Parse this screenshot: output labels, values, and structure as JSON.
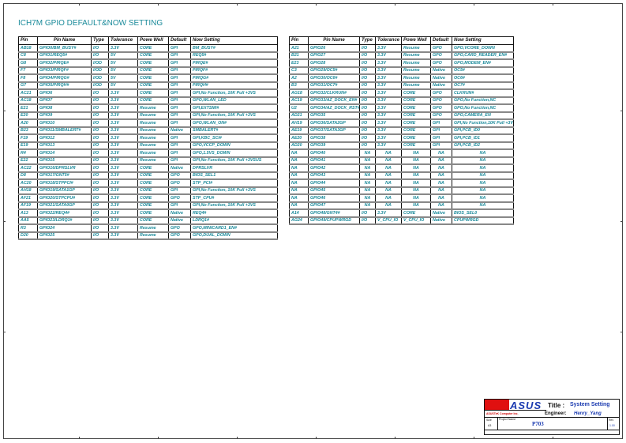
{
  "title": "ICH7M GPIO DEFAULT&NOW SETTING",
  "headers": [
    "Pin",
    "Pin Name",
    "Type",
    "Tolerance",
    "Powe Well",
    "Default",
    "Now Setting"
  ],
  "left_rows": [
    [
      "AB18",
      "GPIO0/BM_BUSY#",
      "I/O",
      "3.3V",
      "CORE",
      "GPI",
      "BM_BUSY#"
    ],
    [
      "C8",
      "GPIO1/REQ5#",
      "I/O",
      "5V",
      "CORE",
      "GPI",
      "REQ5#"
    ],
    [
      "G8",
      "GPIO2/PIRQE#",
      "I/OD",
      "5V",
      "CORE",
      "GPI",
      "PIRQE#"
    ],
    [
      "F7",
      "GPIO3/PIRQF#",
      "I/OD",
      "5V",
      "CORE",
      "GPI",
      "PIRQF#"
    ],
    [
      "F8",
      "GPIO4/PIRQG#",
      "I/OD",
      "5V",
      "CORE",
      "GPI",
      "PIRQG#"
    ],
    [
      "G7",
      "GPIO5/PIRQH#",
      "I/OD",
      "5V",
      "CORE",
      "GPI",
      "PIRQH#"
    ],
    [
      "AC21",
      "GPIO6",
      "I/O",
      "3.3V",
      "CORE",
      "GPI",
      "GPI,No Function, 10K Pull +3VS"
    ],
    [
      "AC18",
      "GPIO7",
      "I/O",
      "3.3V",
      "CORE",
      "GPI",
      "GPO,WLAN_LED"
    ],
    [
      "E21",
      "GPIO8",
      "I/O",
      "3.3V",
      "Resume",
      "GPI",
      "GPI,EXTSMI#"
    ],
    [
      "E20",
      "GPIO9",
      "I/O",
      "3.3V",
      "Resume",
      "GPI",
      "GPI,No Function, 10K Pull +3VS"
    ],
    [
      "A20",
      "GPIO10",
      "I/O",
      "3.3V",
      "Resume",
      "GPI",
      "GPO,WLAN_ON#"
    ],
    [
      "B23",
      "GPIO11/SMBALERT#",
      "I/O",
      "3.3V",
      "Resume",
      "Native",
      "SMBALERT#"
    ],
    [
      "F19",
      "GPIO12",
      "I/O",
      "3.3V",
      "Resume",
      "GPI",
      "GPI,KBC_SCI#"
    ],
    [
      "E19",
      "GPIO13",
      "I/O",
      "3.3V",
      "Resume",
      "GPI",
      "GPO,VCCP_DOWN"
    ],
    [
      "R4",
      "GPIO14",
      "I/O",
      "3.3V",
      "Resume",
      "GPI",
      "GPO,1.5VS_DOWN"
    ],
    [
      "E22",
      "GPIO15",
      "I/O",
      "3.3V",
      "Resume",
      "GPI",
      "GPI,No Function, 10K Pull +3VSUS"
    ],
    [
      "AC22",
      "GPIO16/DPRSLVR",
      "I/O",
      "3.3V",
      "CORE",
      "Native",
      "DPRSLVR"
    ],
    [
      "D8",
      "GPIO17/GNT5#",
      "I/O",
      "3.3V",
      "CORE",
      "GPO",
      "BIOS_SEL1"
    ],
    [
      "AC20",
      "GPIO18/STPPCI#",
      "I/O",
      "3.3V",
      "CORE",
      "GPO",
      "STP_PCI#"
    ],
    [
      "AH18",
      "GPIO19/SATA1GP",
      "I/O",
      "3.3V",
      "CORE",
      "GPI",
      "GPI,No Function, 10K Pull +3VS"
    ],
    [
      "AF21",
      "GPIO20/STPCPU#",
      "I/O",
      "3.3V",
      "CORE",
      "GPO",
      "STP_CPU#"
    ],
    [
      "AF19",
      "GPIO21/SATA0GP",
      "I/O",
      "3.3V",
      "CORE",
      "GPI",
      "GPI,No Function, 10K Pull +3VS"
    ],
    [
      "A13",
      "GPIO22/REQ4#",
      "I/O",
      "3.3V",
      "CORE",
      "Native",
      "REQ4#"
    ],
    [
      "AA5",
      "GPIO23/LDRQ1#",
      "I/O",
      "3.3V",
      "CORE",
      "Native",
      "LDRQ1#"
    ],
    [
      "R3",
      "GPIO24",
      "I/O",
      "3.3V",
      "Resume",
      "GPO",
      "GPO,MINICARD1_EN#"
    ],
    [
      "D20",
      "GPIO25",
      "I/O",
      "3.3V",
      "Resume",
      "GPO",
      "GPO,DUAL_DOWN"
    ]
  ],
  "right_rows": [
    [
      "A21",
      "GPIO26",
      "I/O",
      "3.3V",
      "Resume",
      "GPO",
      "GPO,VCORE_DOWN"
    ],
    [
      "B21",
      "GPIO27",
      "I/O",
      "3.3V",
      "Resume",
      "GPO",
      "GPO,CARD_READER_EN#"
    ],
    [
      "E23",
      "GPIO28",
      "I/O",
      "3.3V",
      "Resume",
      "GPO",
      "GPO,MODEM_EN#"
    ],
    [
      "C3",
      "GPIO29/OC5#",
      "I/O",
      "3.3V",
      "Resume",
      "Native",
      "OC5#"
    ],
    [
      "A2",
      "GPIO30/OC6#",
      "I/O",
      "3.3V",
      "Resume",
      "Native",
      "OC6#"
    ],
    [
      "B3",
      "GPIO31/OC7#",
      "I/O",
      "3.3V",
      "Resume",
      "Native",
      "OC7#"
    ],
    [
      "AG18",
      "GPIO32/CLKRUN#",
      "I/O",
      "3.3V",
      "CORE",
      "GPO",
      "CLKRUN#"
    ],
    [
      "AC19",
      "GPIO33/AZ_DOCK_EN#",
      "I/O",
      "3.3V",
      "CORE",
      "GPO",
      "GPO,No Function,NC"
    ],
    [
      "U2",
      "GPIO34/AZ_DOCK_RST#",
      "I/O",
      "3.3V",
      "CORE",
      "GPO",
      "GPO,No Function,NC"
    ],
    [
      "AD21",
      "GPIO35",
      "I/O",
      "3.3V",
      "CORE",
      "GPO",
      "GPO,CAMERA_EN"
    ],
    [
      "AH19",
      "GPIO36/SATA2GP",
      "I/O",
      "3.3V",
      "CORE",
      "GPI",
      "GPI,No Function,10K Pull +3VS"
    ],
    [
      "AE19",
      "GPIO37/SATA3GP",
      "I/O",
      "3.3V",
      "CORE",
      "GPI",
      "GPI,PCB_ID0"
    ],
    [
      "AE20",
      "GPIO38",
      "I/O",
      "3.3V",
      "CORE",
      "GPI",
      "GPI,PCB_ID1"
    ],
    [
      "AD20",
      "GPIO39",
      "I/O",
      "3.3V",
      "CORE",
      "GPI",
      "GPI,PCB_ID2"
    ],
    [
      "NA",
      "GPIO40",
      "NA",
      "NA",
      "NA",
      "NA",
      "NA"
    ],
    [
      "NA",
      "GPIO41",
      "NA",
      "NA",
      "NA",
      "NA",
      "NA"
    ],
    [
      "NA",
      "GPIO42",
      "NA",
      "NA",
      "NA",
      "NA",
      "NA"
    ],
    [
      "NA",
      "GPIO43",
      "NA",
      "NA",
      "NA",
      "NA",
      "NA"
    ],
    [
      "NA",
      "GPIO44",
      "NA",
      "NA",
      "NA",
      "NA",
      "NA"
    ],
    [
      "NA",
      "GPIO45",
      "NA",
      "NA",
      "NA",
      "NA",
      "NA"
    ],
    [
      "NA",
      "GPIO46",
      "NA",
      "NA",
      "NA",
      "NA",
      "NA"
    ],
    [
      "NA",
      "GPIO47",
      "NA",
      "NA",
      "NA",
      "NA",
      "NA"
    ],
    [
      "A14",
      "GPIO48/GNT4#",
      "I/O",
      "3.3V",
      "CORE",
      "Native",
      "BIOS_SEL0"
    ],
    [
      "AG24",
      "GPIO49/CPUPWRGD",
      "I/O",
      "V_CPU_IO",
      "V_CPU_IO",
      "Native",
      "CPUPWRGD"
    ]
  ],
  "title_block": {
    "logo": "ASUS",
    "company": "ASUSTeK Computer Inc.",
    "title_label": "Title :",
    "title_value": "System Setting",
    "engineer_label": "Engineer:",
    "engineer_value": "Henry_Yang",
    "size_label": "Size",
    "size_value": "A3",
    "project_label": "Project Name",
    "project_value": "P703",
    "rev_label": "Rev",
    "rev_value": "1.00"
  },
  "colors": {
    "text": "#1a8a9a",
    "title_value": "#1a3ab0"
  }
}
